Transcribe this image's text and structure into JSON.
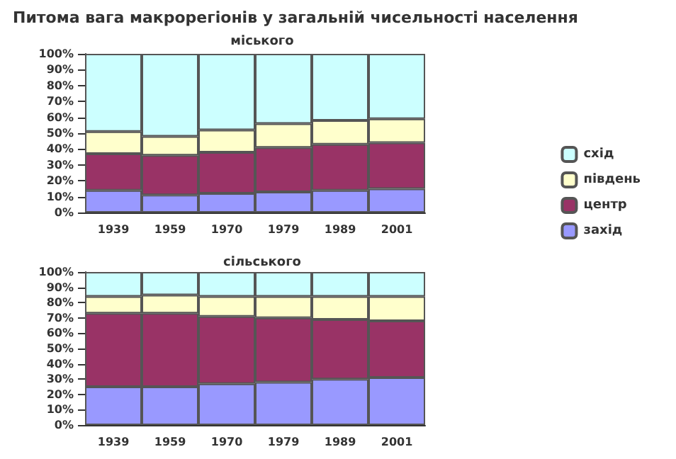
{
  "chart_data": [
    {
      "type": "bar",
      "title": "Питома вага макрорегіонів у загальній чисельності населення",
      "subtitle": "міського",
      "stacked": true,
      "categories": [
        "1939",
        "1959",
        "1970",
        "1979",
        "1989",
        "2001"
      ],
      "ylim": [
        0,
        100
      ],
      "yticks": [
        {
          "value": 0,
          "label": "0%"
        },
        {
          "value": 10,
          "label": "10%"
        },
        {
          "value": 20,
          "label": "20%"
        },
        {
          "value": 30,
          "label": "30%"
        },
        {
          "value": 40,
          "label": "40%"
        },
        {
          "value": 50,
          "label": "50%"
        },
        {
          "value": 60,
          "label": "60%"
        },
        {
          "value": 70,
          "label": "70%"
        },
        {
          "value": 80,
          "label": "80%"
        },
        {
          "value": 90,
          "label": "90%"
        },
        {
          "value": 100,
          "label": "100%"
        }
      ],
      "grid": false,
      "legend": "right",
      "series": [
        {
          "name": "захід",
          "color": "#9999ff",
          "values": [
            14,
            11,
            12,
            13,
            14,
            15
          ]
        },
        {
          "name": "центр",
          "color": "#993366",
          "values": [
            23,
            25,
            26,
            28,
            29,
            29
          ]
        },
        {
          "name": "південь",
          "color": "#ffffcc",
          "values": [
            14,
            12,
            14,
            15,
            15,
            15
          ]
        },
        {
          "name": "схід",
          "color": "#ccffff",
          "values": [
            49,
            52,
            48,
            44,
            42,
            41
          ]
        }
      ]
    },
    {
      "type": "bar",
      "title": "сільського",
      "stacked": true,
      "categories": [
        "1939",
        "1959",
        "1970",
        "1979",
        "1989",
        "2001"
      ],
      "ylim": [
        0,
        100
      ],
      "yticks": [
        {
          "value": 0,
          "label": "0%"
        },
        {
          "value": 10,
          "label": "10%"
        },
        {
          "value": 20,
          "label": "20%"
        },
        {
          "value": 30,
          "label": "30%"
        },
        {
          "value": 40,
          "label": "40%"
        },
        {
          "value": 50,
          "label": "50%"
        },
        {
          "value": 60,
          "label": "60%"
        },
        {
          "value": 70,
          "label": "70%"
        },
        {
          "value": 80,
          "label": "80%"
        },
        {
          "value": 90,
          "label": "90%"
        },
        {
          "value": 100,
          "label": "100%"
        }
      ],
      "grid": false,
      "series": [
        {
          "color": "#9999ff",
          "values": [
            25,
            25,
            27,
            28,
            30,
            31
          ]
        },
        {
          "color": "#993366",
          "values": [
            48,
            48,
            44,
            42,
            39,
            37
          ]
        },
        {
          "color": "#ffffcc",
          "values": [
            11,
            12,
            13,
            14,
            15,
            16
          ]
        },
        {
          "color": "#ccffff",
          "values": [
            16,
            15,
            16,
            16,
            16,
            16
          ]
        }
      ]
    }
  ]
}
